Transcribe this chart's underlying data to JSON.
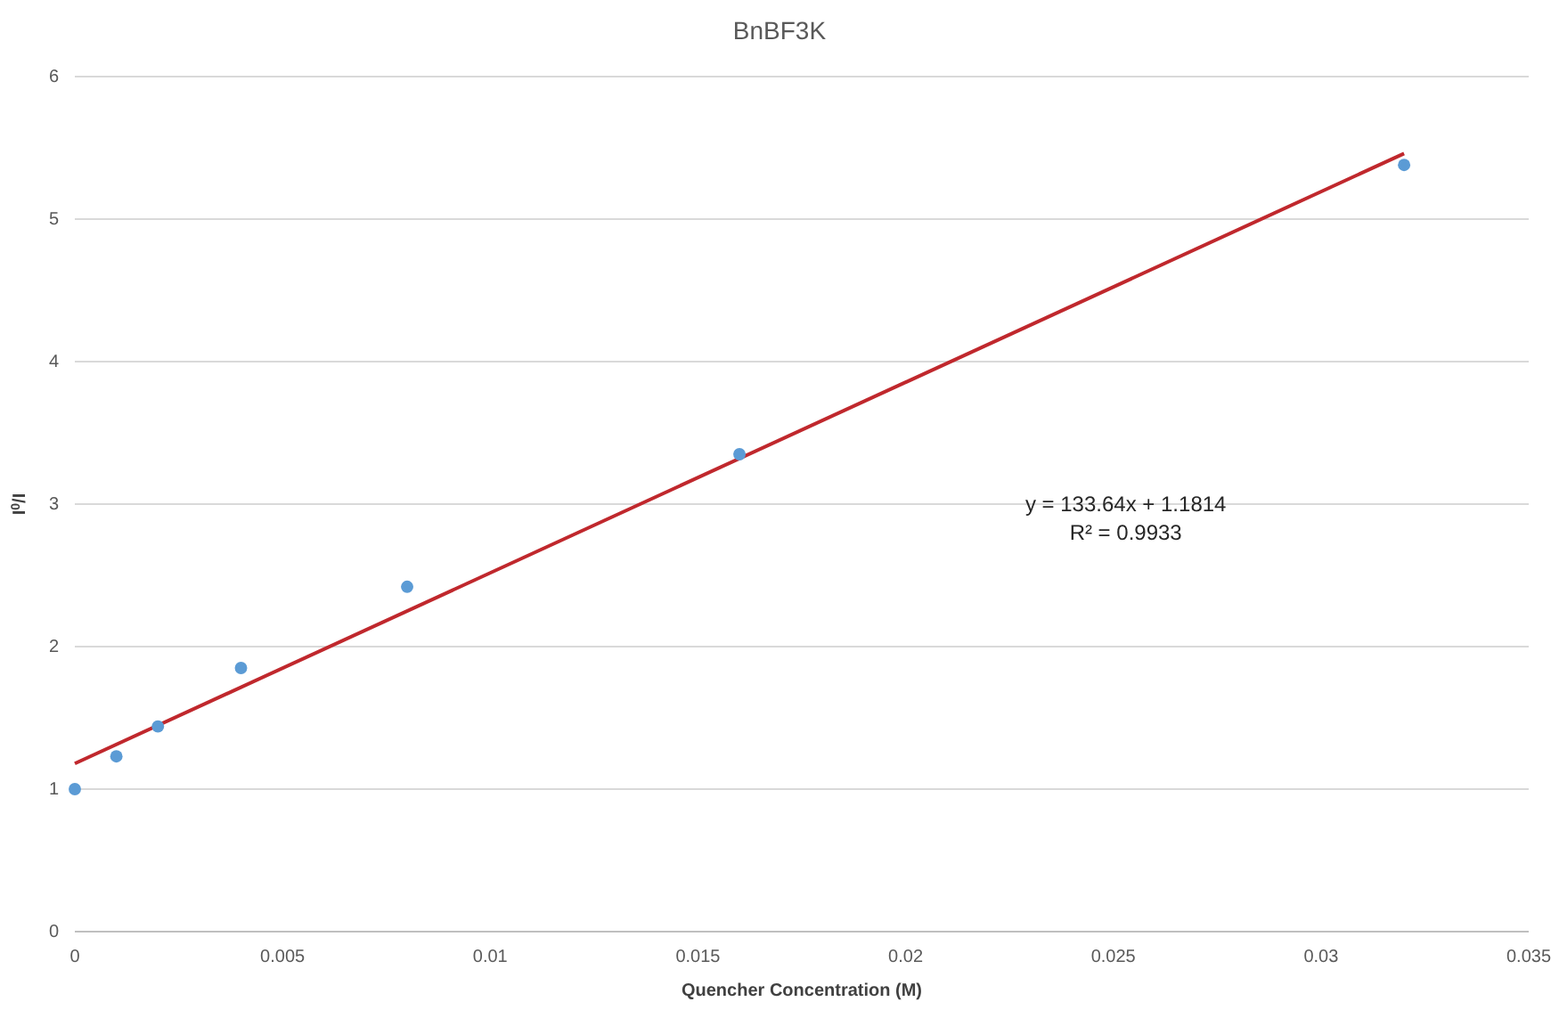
{
  "chart_data": {
    "type": "scatter",
    "title": "BnBF3K",
    "xlabel": "Quencher Concentration (M)",
    "ylabel": "I$^{0}$/I",
    "xlim": [
      0,
      0.035
    ],
    "xticks": [
      0,
      0.005,
      0.01,
      0.015,
      0.02,
      0.025,
      0.03,
      0.035
    ],
    "ylim": [
      0,
      6
    ],
    "yticks": [
      0,
      1,
      2,
      3,
      4,
      5,
      6
    ],
    "grid": "y",
    "series": [
      {
        "marker": "circle",
        "color": "#5b9bd5",
        "x": [
          0,
          0.001,
          0.002,
          0.004,
          0.008,
          0.016,
          0.032
        ],
        "values": [
          1.0,
          1.23,
          1.44,
          1.85,
          2.42,
          3.35,
          5.38
        ]
      },
      {
        "type": "line",
        "color": "#c0282d",
        "x": [
          0,
          0.032
        ],
        "values": [
          1.18,
          5.46
        ]
      }
    ],
    "annotations": [
      "y = 133.64x + 1.1814",
      "R² = 0.9933"
    ]
  }
}
